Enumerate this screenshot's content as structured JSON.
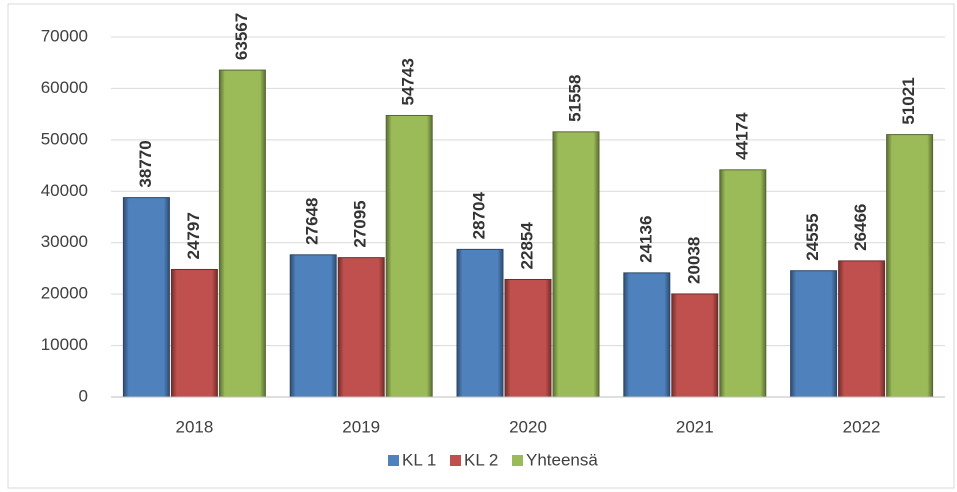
{
  "chart_data": {
    "type": "bar",
    "categories": [
      "2018",
      "2019",
      "2020",
      "2021",
      "2022"
    ],
    "series": [
      {
        "name": "KL 1",
        "color": "#4f81bd",
        "values": [
          38770,
          27648,
          28704,
          24136,
          24555
        ]
      },
      {
        "name": "KL 2",
        "color": "#c0504d",
        "values": [
          24797,
          27095,
          22854,
          20038,
          26466
        ]
      },
      {
        "name": "Yhteensä",
        "color": "#9bbb59",
        "values": [
          63567,
          54743,
          51558,
          44174,
          51021
        ]
      }
    ],
    "ylim": [
      0,
      70000
    ],
    "yticks": [
      0,
      10000,
      20000,
      30000,
      40000,
      50000,
      60000,
      70000
    ],
    "grid": true,
    "legend": "bottom"
  }
}
